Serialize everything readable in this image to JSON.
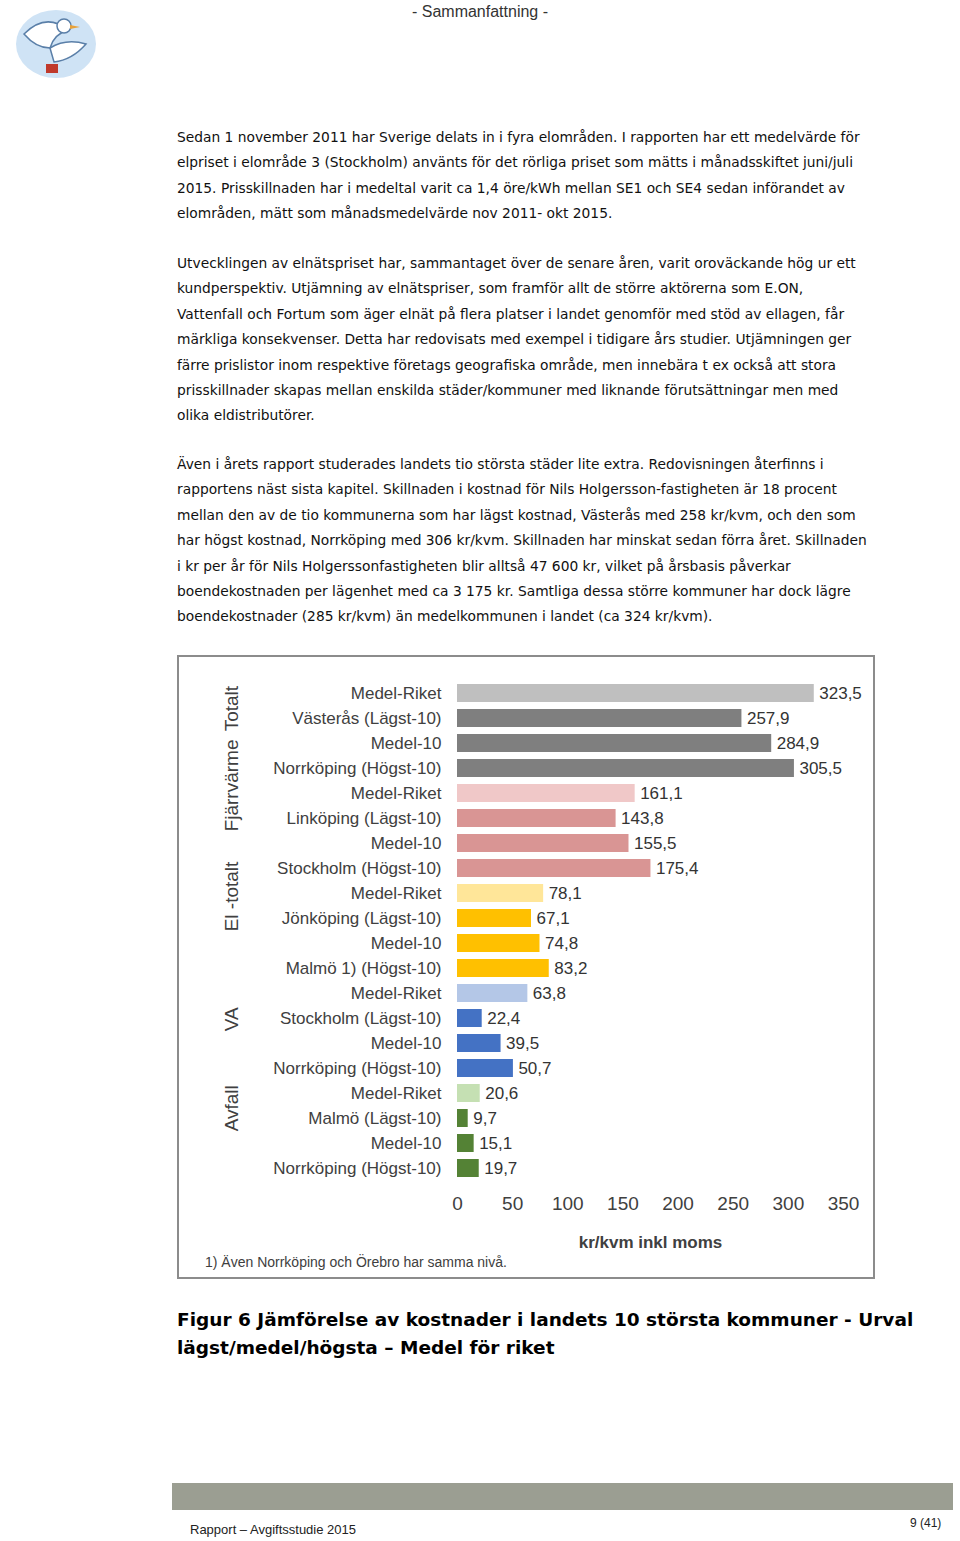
{
  "header": {
    "title": "- Sammanfattning -"
  },
  "paragraphs": [
    [
      "Sedan 1 november 2011 har Sverige delats in i fyra elområden. I rapporten har ett medelvärde för",
      "elpriset i elområde 3 (Stockholm) använts för det rörliga priset som mätts i månadsskiftet juni/juli",
      "2015. Prisskillnaden har i medeltal varit ca 1,4 öre/kWh mellan SE1 och SE4 sedan införandet av",
      "elområden, mätt som månadsmedelvärde nov 2011- okt 2015."
    ],
    [
      "Utvecklingen av elnätspriset har, sammantaget över de senare åren, varit oroväckande hög ur ett",
      "kundperspektiv. Utjämning av elnätspriser, som framför allt de större aktörerna som E.ON,",
      "Vattenfall och Fortum som äger elnät på flera platser i landet genomför med stöd av ellagen, får",
      "märkliga konsekvenser. Detta har redovisats med exempel i tidigare års studier. Utjämningen ger",
      "färre prislistor inom respektive företags geografiska område, men innebära t ex också att stora",
      "prisskillnader skapas mellan enskilda städer/kommuner med liknande förutsättningar men med",
      "olika eldistributörer."
    ],
    [
      "Även i årets rapport studerades landets tio största städer lite extra. Redovisningen återfinns i",
      "rapportens näst sista kapitel. Skillnaden i kostnad för Nils Holgersson-fastigheten är 18 procent",
      "mellan den av de tio kommunerna som har lägst kostnad, Västerås med 258 kr/kvm, och den som",
      "har högst kostnad, Norrköping med 306 kr/kvm. Skillnaden har minskat sedan förra året. Skillnaden",
      "i kr per år för Nils Holgerssonfastigheten blir alltså 47 600 kr, vilket på årsbasis påverkar",
      "boendekostnaden per lägenhet med ca 3 175 kr. Samtliga dessa större kommuner har dock lägre",
      "boendekostnader (285 kr/kvm) än medelkommunen i landet (ca 324 kr/kvm)."
    ]
  ],
  "chart_data": {
    "type": "bar",
    "orientation": "horizontal",
    "categories": [
      "Medel-Riket",
      "Västerås (Lägst-10)",
      "Medel-10",
      "Norrköping (Högst-10)",
      "Medel-Riket",
      "Linköping (Lägst-10)",
      "Medel-10",
      "Stockholm (Högst-10)",
      "Medel-Riket",
      "Jönköping (Lägst-10)",
      "Medel-10",
      "Malmö 1) (Högst-10)",
      "Medel-Riket",
      "Stockholm (Lägst-10)",
      "Medel-10",
      "Norrköping (Högst-10)",
      "Medel-Riket",
      "Malmö (Lägst-10)",
      "Medel-10",
      "Norrköping (Högst-10)"
    ],
    "group_labels": [
      "Totalt",
      "Totalt",
      "Totalt",
      "Totalt",
      "Fjärrvärme",
      "Fjärrvärme",
      "Fjärrvärme",
      "Fjärrvärme",
      "El -totalt",
      "El -totalt",
      "El -totalt",
      "El -totalt",
      "VA",
      "VA",
      "VA",
      "VA",
      "Avfall",
      "Avfall",
      "Avfall",
      "Avfall"
    ],
    "values": [
      323.5,
      257.9,
      284.9,
      305.5,
      161.1,
      143.8,
      155.5,
      175.4,
      78.1,
      67.1,
      74.8,
      83.2,
      63.8,
      22.4,
      39.5,
      50.7,
      20.6,
      9.7,
      15.1,
      19.7
    ],
    "value_labels": [
      "323,5",
      "257,9",
      "284,9",
      "305,5",
      "161,1",
      "143,8",
      "155,5",
      "175,4",
      "78,1",
      "67,1",
      "74,8",
      "83,2",
      "63,8",
      "22,4",
      "39,5",
      "50,7",
      "20,6",
      "9,7",
      "15,1",
      "19,7"
    ],
    "colors": [
      "#bfbfbf",
      "#7f7f7f",
      "#7f7f7f",
      "#7f7f7f",
      "#f0c8c8",
      "#d99594",
      "#d99594",
      "#d99594",
      "#ffe699",
      "#ffc000",
      "#ffc000",
      "#ffc000",
      "#b4c7e7",
      "#4472c4",
      "#4472c4",
      "#4472c4",
      "#c5e0b3",
      "#548235",
      "#548235",
      "#548235"
    ],
    "xlabel": "kr/kvm inkl moms",
    "xlim": [
      0,
      350
    ],
    "xticks": [
      0,
      50,
      100,
      150,
      200,
      250,
      300,
      350
    ],
    "data_labels": true,
    "grid": false,
    "note": "1) Även Norrköping och Örebro har samma nivå."
  },
  "caption": [
    "Figur 6 Jämförelse av kostnader i landets 10 största kommuner - Urval",
    "lägst/medel/högsta – Medel för riket"
  ],
  "footer": {
    "left": "Rapport – Avgiftsstudie 2015",
    "page": "9 (41)"
  }
}
